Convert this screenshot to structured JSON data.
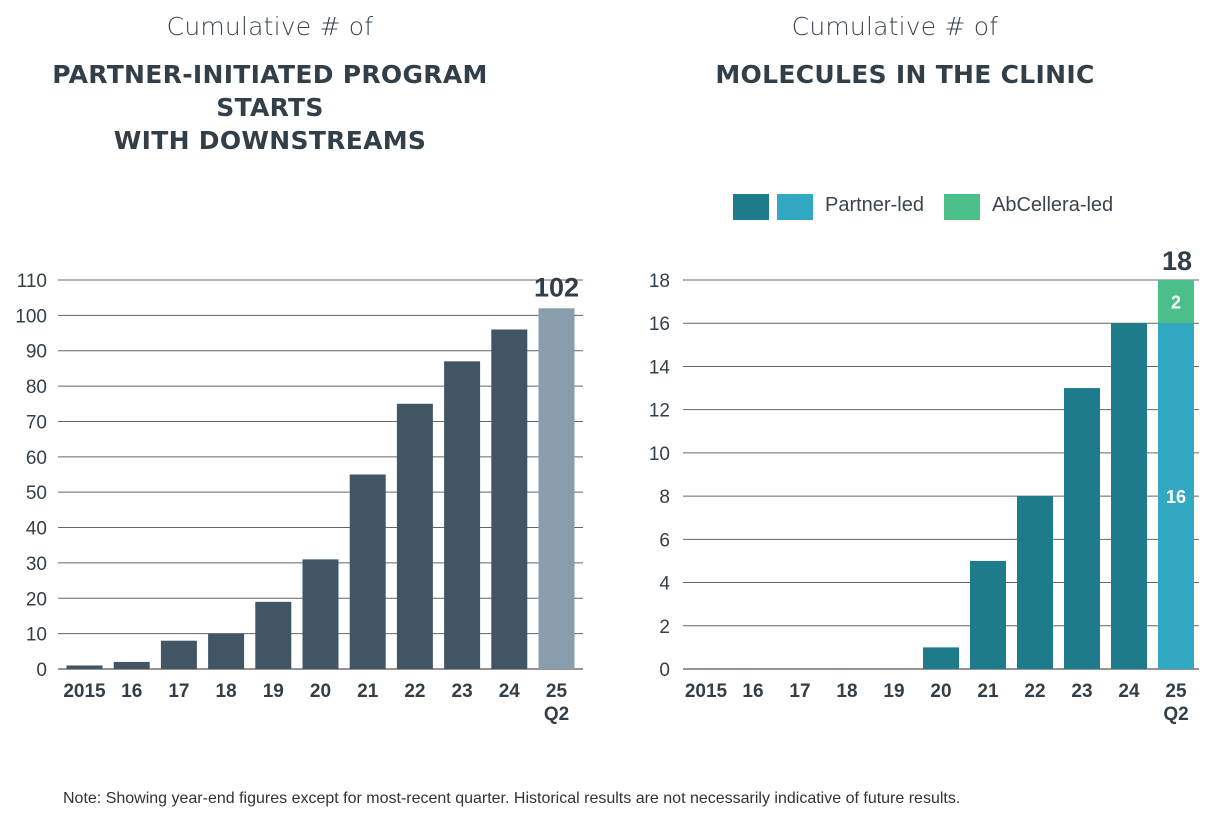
{
  "left_chart": {
    "subtitle": "Cumulative # of",
    "title_line1": "PARTNER-INITIATED PROGRAM STARTS",
    "title_line2": "WITH DOWNSTREAMS"
  },
  "right_chart": {
    "subtitle": "Cumulative # of",
    "title": "MOLECULES IN THE CLINIC"
  },
  "legend": {
    "partner_label": "Partner-led",
    "abcellera_label": "AbCellera-led"
  },
  "colors": {
    "left_bar": "#415564",
    "left_bar_highlight": "#8a9dad",
    "partner_dark": "#1e7b8c",
    "partner_light": "#33a8c3",
    "abcellera": "#4cbe8a"
  },
  "footnote": "Note: Showing year-end figures except for most-recent quarter. Historical results are not necessarily indicative of future results.",
  "chart_data": [
    {
      "type": "bar",
      "title": "Cumulative # of PARTNER-INITIATED PROGRAM STARTS WITH DOWNSTREAMS",
      "categories": [
        "2015",
        "16",
        "17",
        "18",
        "19",
        "20",
        "21",
        "22",
        "23",
        "24",
        "25"
      ],
      "category_sublabels": [
        "",
        "",
        "",
        "",
        "",
        "",
        "",
        "",
        "",
        "",
        "Q2"
      ],
      "values": [
        1,
        2,
        8,
        10,
        19,
        31,
        55,
        75,
        87,
        96,
        102
      ],
      "highlight_index": 10,
      "highlight_label": "102",
      "yticks": [
        "0",
        "10",
        "20",
        "30",
        "40",
        "50",
        "60",
        "70",
        "80",
        "90",
        "100",
        "110"
      ],
      "ylim": [
        0,
        110
      ]
    },
    {
      "type": "bar",
      "stacked": true,
      "title": "Cumulative # of MOLECULES IN THE CLINIC",
      "categories": [
        "2015",
        "16",
        "17",
        "18",
        "19",
        "20",
        "21",
        "22",
        "23",
        "24",
        "25"
      ],
      "category_sublabels": [
        "",
        "",
        "",
        "",
        "",
        "",
        "",
        "",
        "",
        "",
        "Q2"
      ],
      "series": [
        {
          "name": "Partner-led",
          "values": [
            0,
            0,
            0,
            0,
            0,
            1,
            5,
            8,
            13,
            16,
            16
          ]
        },
        {
          "name": "AbCellera-led",
          "values": [
            0,
            0,
            0,
            0,
            0,
            0,
            0,
            0,
            0,
            0,
            2
          ]
        }
      ],
      "segment_labels": {
        "partner_last": "16",
        "abcellera_last": "2"
      },
      "total_label": "18",
      "yticks": [
        "0",
        "2",
        "4",
        "6",
        "8",
        "10",
        "12",
        "14",
        "16",
        "18"
      ],
      "ylim": [
        0,
        18
      ]
    }
  ]
}
